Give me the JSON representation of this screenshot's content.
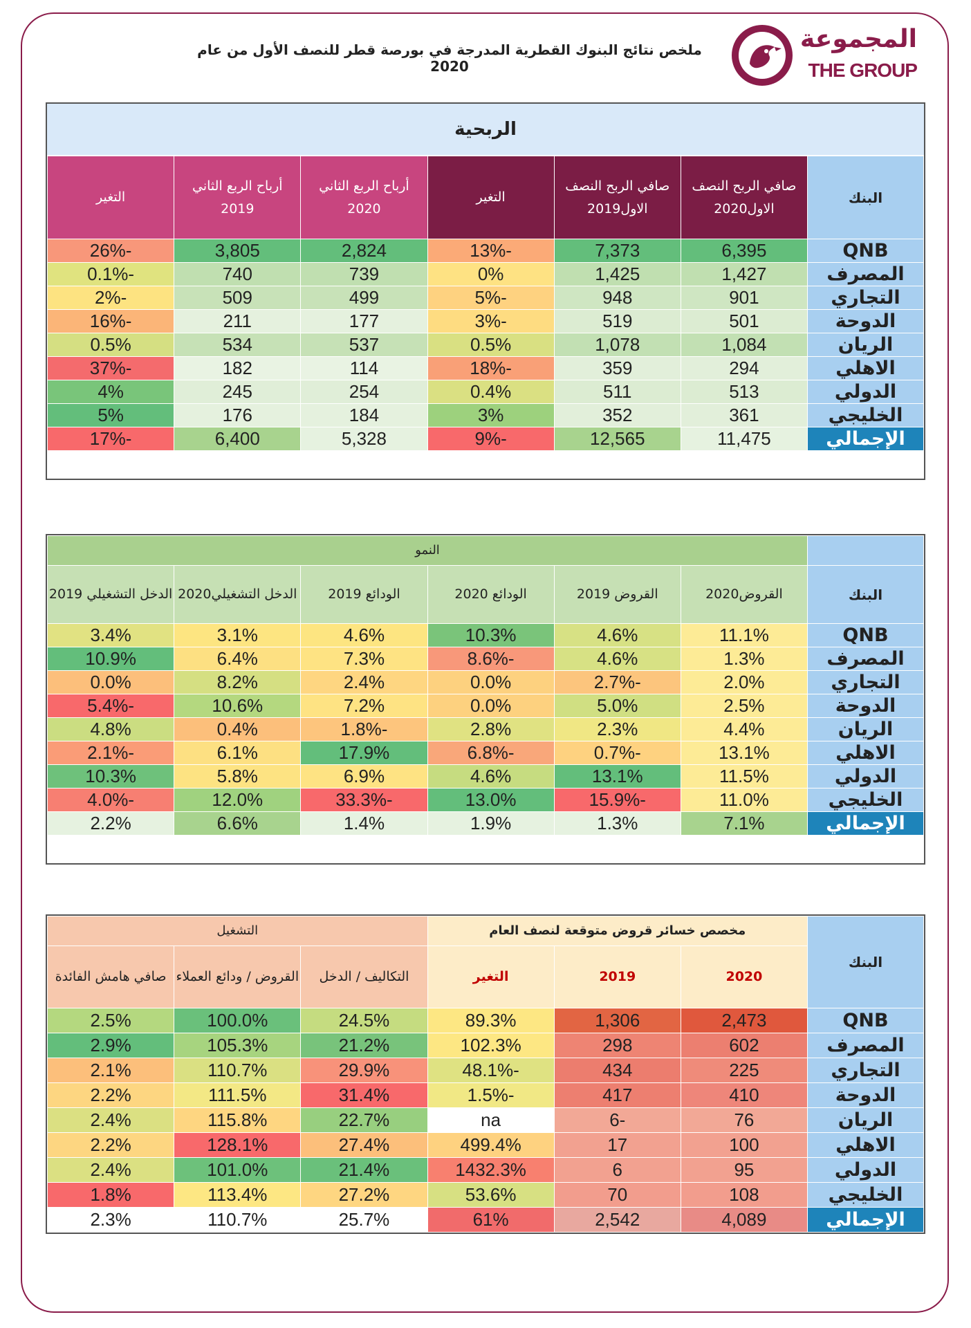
{
  "logo": {
    "arabic": "المجموعة",
    "english": "THE GROUP"
  },
  "title": "ملخص نتائج البنوك القطرية المدرجة في بورصة قطر للنصف الأول من عام 2020",
  "colors": {
    "brand": "#8a1c4a",
    "bank_bg": "#a8cff0",
    "total_bg": "#1e84ba"
  },
  "profit": {
    "section_title": "الربحية",
    "headers": [
      "البنك",
      "صافي الربح النصف الاول2020",
      "صافي الربح النصف الاول2019",
      "التغير",
      "أرباح الربع الثاني 2020",
      "أرباح الربع الثاني 2019",
      "التغير"
    ],
    "rows": [
      {
        "bank": "QNB",
        "v": [
          "6,395",
          "7,373",
          "-13%",
          "2,824",
          "3,805",
          "-26%"
        ],
        "c": [
          "#63be7b",
          "#63be7b",
          "#fbaa77",
          "#63be7b",
          "#63be7b",
          "#f8977a"
        ]
      },
      {
        "bank": "المصرف",
        "v": [
          "1,427",
          "1,425",
          "0%",
          "739",
          "740",
          "-0.1%"
        ],
        "c": [
          "#c0dfb0",
          "#c0dfb0",
          "#fee283",
          "#c0dfb0",
          "#c0dfb0",
          "#e0e37f"
        ]
      },
      {
        "bank": "التجاري",
        "v": [
          "901",
          "948",
          "-5%",
          "499",
          "509",
          "-2%"
        ],
        "c": [
          "#cfe6c2",
          "#cfe6c2",
          "#fed280",
          "#c8e2b8",
          "#c8e2b8",
          "#fde381"
        ]
      },
      {
        "bank": "الدوحة",
        "v": [
          "501",
          "519",
          "-3%",
          "177",
          "211",
          "-16%"
        ],
        "c": [
          "#dcecd2",
          "#dcecd2",
          "#fedc81",
          "#e5f1de",
          "#e5f1de",
          "#fbb578"
        ]
      },
      {
        "bank": "الريان",
        "v": [
          "1,084",
          "1,078",
          "0.5%",
          "537",
          "534",
          "0.5%"
        ],
        "c": [
          "#c2e0b3",
          "#c2e0b3",
          "#d9e082",
          "#c6e1b6",
          "#c6e1b6",
          "#d5df82"
        ]
      },
      {
        "bank": "الاهلي",
        "v": [
          "294",
          "359",
          "-18%",
          "114",
          "182",
          "-37%"
        ],
        "c": [
          "#e2efda",
          "#e2efda",
          "#f9a077",
          "#e9f3e3",
          "#e9f3e3",
          "#f46b6d"
        ]
      },
      {
        "bank": "الدولي",
        "v": [
          "513",
          "511",
          "0.4%",
          "254",
          "245",
          "4%"
        ],
        "c": [
          "#dcecd2",
          "#dcecd2",
          "#dae082",
          "#e0eed8",
          "#e0eed8",
          "#79c57a"
        ]
      },
      {
        "bank": "الخليجي",
        "v": [
          "361",
          "352",
          "3%",
          "184",
          "176",
          "5%"
        ],
        "c": [
          "#e2efda",
          "#e2efda",
          "#9dd17d",
          "#e5f1de",
          "#e5f1de",
          "#63be7b"
        ]
      },
      {
        "bank": "الإجمالي",
        "total": true,
        "v": [
          "11,475",
          "12,565",
          "-9%",
          "5,328",
          "6,400",
          "-17%"
        ],
        "c": [
          "#e6f2e0",
          "#a8d38e",
          "#f8696b",
          "#e6f2e0",
          "#a8d38e",
          "#f8696b"
        ]
      }
    ]
  },
  "growth": {
    "section_title": "النمو",
    "headers": [
      "البنك",
      "القروض2020",
      "القروض 2019",
      "الودائع 2020",
      "الودائع 2019",
      "الدخل التشغيلي2020",
      "الدخل التشغيلي 2019"
    ],
    "rows": [
      {
        "bank": "QNB",
        "v": [
          "11.1%",
          "4.6%",
          "10.3%",
          "4.6%",
          "3.1%",
          "3.4%"
        ],
        "c": [
          "#fdeb96",
          "#d7e184",
          "#7ac47a",
          "#fde581",
          "#fde581",
          "#e1e282"
        ]
      },
      {
        "bank": "المصرف",
        "v": [
          "1.3%",
          "4.6%",
          "-8.6%",
          "7.3%",
          "6.4%",
          "10.9%"
        ],
        "c": [
          "#fdeb96",
          "#d7e184",
          "#f8987a",
          "#fee383",
          "#fde082",
          "#63be7b"
        ]
      },
      {
        "bank": "التجاري",
        "v": [
          "2.0%",
          "-2.7%",
          "0.0%",
          "2.4%",
          "8.2%",
          "0.0%"
        ],
        "c": [
          "#fdeb96",
          "#fcc57d",
          "#fdd17f",
          "#fed681",
          "#d5df82",
          "#fcbf7b"
        ]
      },
      {
        "bank": "الدوحة",
        "v": [
          "2.5%",
          "5.0%",
          "0.0%",
          "7.2%",
          "10.6%",
          "-5.4%"
        ],
        "c": [
          "#fdeb96",
          "#d0df82",
          "#fdd17f",
          "#fee383",
          "#b4d87f",
          "#f8696b"
        ]
      },
      {
        "bank": "الريان",
        "v": [
          "4.4%",
          "2.3%",
          "2.8%",
          "-1.8%",
          "0.4%",
          "4.8%"
        ],
        "c": [
          "#fdeb96",
          "#f0e784",
          "#e0e282",
          "#fdc57d",
          "#fcbf7b",
          "#cbdd81"
        ]
      },
      {
        "bank": "الاهلي",
        "v": [
          "13.1%",
          "-0.7%",
          "-6.8%",
          "17.9%",
          "6.1%",
          "-2.1%"
        ],
        "c": [
          "#fdeb96",
          "#fed280",
          "#f9a77a",
          "#63be7b",
          "#fde082",
          "#fa9c77"
        ]
      },
      {
        "bank": "الدولي",
        "v": [
          "11.5%",
          "13.1%",
          "4.6%",
          "6.9%",
          "5.8%",
          "10.3%"
        ],
        "c": [
          "#fdeb96",
          "#63be7b",
          "#c6dc80",
          "#fee383",
          "#fde382",
          "#6ec17b"
        ]
      },
      {
        "bank": "الخليجي",
        "v": [
          "11.0%",
          "-15.9%",
          "13.0%",
          "-33.3%",
          "12.0%",
          "-4.0%"
        ],
        "c": [
          "#fdeb96",
          "#f8696b",
          "#63be7b",
          "#f8696b",
          "#a0d27f",
          "#f77f72"
        ]
      },
      {
        "bank": "الإجمالي",
        "total": true,
        "v": [
          "7.1%",
          "1.3%",
          "1.9%",
          "1.4%",
          "6.6%",
          "2.2%"
        ],
        "c": [
          "#a8d38e",
          "#e6f2e0",
          "#e6f2e0",
          "#e6f2e0",
          "#a8d38e",
          "#e6f2e0"
        ]
      }
    ]
  },
  "provisions": {
    "group_left": "مخصص خسائر قروض متوقعة لنصف العام",
    "group_right": "التشغيل",
    "headers": [
      "البنك",
      "2020",
      "2019",
      "التغير",
      "التكاليف / الدخل",
      "القروض / ودائع العملاء",
      "صافي هامش الفائدة"
    ],
    "rows": [
      {
        "bank": "QNB",
        "v": [
          "2,473",
          "1,306",
          "89.3%",
          "24.5%",
          "100.0%",
          "2.5%"
        ],
        "c": [
          "#e0583d",
          "#e26543",
          "#fde783",
          "#c5dc80",
          "#6ac07b",
          "#b4d87f"
        ]
      },
      {
        "bank": "المصرف",
        "v": [
          "602",
          "298",
          "102.3%",
          "21.2%",
          "105.3%",
          "2.9%"
        ],
        "c": [
          "#ec7f70",
          "#ee8473",
          "#fde783",
          "#78c37b",
          "#a7d47f",
          "#63be7b"
        ]
      },
      {
        "bank": "التجاري",
        "v": [
          "225",
          "434",
          "-48.1%",
          "29.9%",
          "110.7%",
          "2.1%"
        ],
        "c": [
          "#ef8b7a",
          "#ec7d6e",
          "#dfe282",
          "#f8927a",
          "#dae082",
          "#fcbf7b"
        ]
      },
      {
        "bank": "الدوحة",
        "v": [
          "410",
          "417",
          "-1.5%",
          "31.4%",
          "111.5%",
          "2.2%"
        ],
        "c": [
          "#ee867a",
          "#ed7f70",
          "#f1e885",
          "#f8696b",
          "#f3e885",
          "#fdd681"
        ]
      },
      {
        "bank": "الريان",
        "v": [
          "76",
          "-6",
          "na",
          "22.7%",
          "115.8%",
          "2.4%"
        ],
        "c": [
          "#f2a896",
          "#f2a896",
          "#ffffff",
          "#98cf7f",
          "#fed681",
          "#dbe082"
        ]
      },
      {
        "bank": "الاهلي",
        "v": [
          "100",
          "17",
          "499.4%",
          "27.4%",
          "128.1%",
          "2.2%"
        ],
        "c": [
          "#f2a190",
          "#f2a190",
          "#fed280",
          "#fcbf7b",
          "#f8696b",
          "#fdd681"
        ]
      },
      {
        "bank": "الدولي",
        "v": [
          "95",
          "6",
          "1432.3%",
          "21.4%",
          "101.0%",
          "2.4%"
        ],
        "c": [
          "#f2a190",
          "#f2a190",
          "#f8806f",
          "#6ac07b",
          "#6dc17b",
          "#dbe082"
        ]
      },
      {
        "bank": "الخليجي",
        "v": [
          "108",
          "70",
          "53.6%",
          "27.2%",
          "113.4%",
          "1.8%"
        ],
        "c": [
          "#f29d8d",
          "#f29d8d",
          "#d7e082",
          "#fed681",
          "#fde783",
          "#f8696b"
        ]
      },
      {
        "bank": "الإجمالي",
        "total": true,
        "v": [
          "4,089",
          "2,542",
          "61%",
          "25.7%",
          "110.7%",
          "2.3%"
        ],
        "c": [
          "#e88b86",
          "#e8a89f",
          "#f16b6b",
          "#ffffff",
          "#ffffff",
          "#ffffff"
        ]
      }
    ]
  }
}
